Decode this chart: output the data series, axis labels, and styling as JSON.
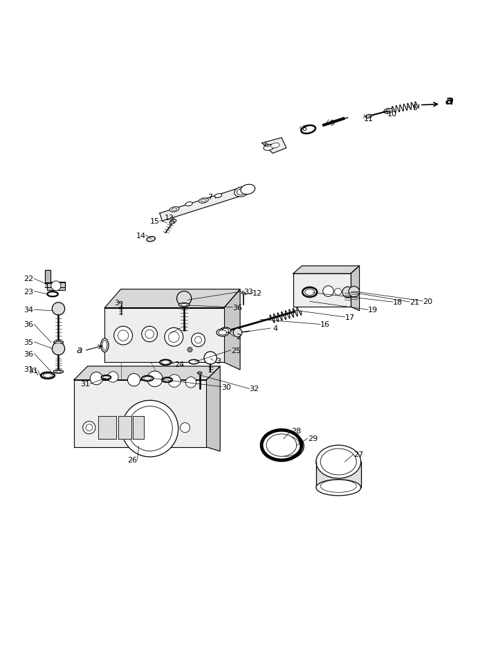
{
  "bg_color": "#ffffff",
  "line_color": "#000000",
  "figsize": [
    7.04,
    9.53
  ],
  "dpi": 100
}
